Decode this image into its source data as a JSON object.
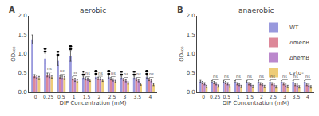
{
  "chart_data": [
    {
      "type": "bar",
      "title": "aerobic",
      "panel_label": "A",
      "x_label": "DIP Concentration (mM)",
      "y_label": "OD₆₀₀",
      "categories": [
        "0",
        "0.25",
        "0.5",
        "1",
        "1.5",
        "2",
        "2.5",
        "3",
        "3.5",
        "4"
      ],
      "series": [
        {
          "name": "WT",
          "color": "#9999dd",
          "values": [
            1.38,
            0.88,
            0.82,
            0.95,
            0.38,
            0.4,
            0.4,
            0.38,
            0.38,
            0.4
          ],
          "errors": [
            0.12,
            0.14,
            0.12,
            0.14,
            0.04,
            0.04,
            0.04,
            0.04,
            0.04,
            0.04
          ]
        },
        {
          "name": "ΔmenB",
          "color": "#dd8899",
          "values": [
            0.42,
            0.45,
            0.4,
            0.36,
            0.35,
            0.36,
            0.35,
            0.33,
            0.33,
            0.33
          ],
          "errors": [
            0.04,
            0.05,
            0.04,
            0.04,
            0.03,
            0.03,
            0.03,
            0.03,
            0.03,
            0.03
          ]
        },
        {
          "name": "ΔhemB",
          "color": "#bb88cc",
          "values": [
            0.4,
            0.43,
            0.38,
            0.32,
            0.34,
            0.35,
            0.32,
            0.3,
            0.3,
            0.3
          ],
          "errors": [
            0.04,
            0.05,
            0.04,
            0.04,
            0.03,
            0.03,
            0.03,
            0.03,
            0.03,
            0.03
          ]
        },
        {
          "name": "cyto-",
          "color": "#eecc77",
          "values": [
            0.37,
            0.4,
            0.37,
            0.29,
            0.31,
            0.31,
            0.28,
            0.24,
            0.21,
            0.2
          ],
          "errors": [
            0.04,
            0.04,
            0.04,
            0.04,
            0.03,
            0.03,
            0.03,
            0.03,
            0.03,
            0.03
          ]
        }
      ],
      "significance_dots": {
        "series": "WT",
        "counts": [
          0,
          4,
          4,
          4,
          3,
          4,
          4,
          4,
          4,
          4
        ]
      },
      "annotations": [
        {
          "category": "0.25",
          "text": "ns",
          "series": [
            "ΔmenB",
            "ΔhemB",
            "cyto-"
          ]
        },
        {
          "category": "0.5",
          "text": "ns",
          "series": [
            "ΔmenB",
            "ΔhemB",
            "cyto-"
          ]
        },
        {
          "category": "1",
          "text": "ns",
          "series": [
            "ΔmenB",
            "ΔhemB",
            "cyto-"
          ]
        },
        {
          "category": "1.5",
          "text": "ns",
          "series": [
            "ΔmenB",
            "ΔhemB",
            "cyto-"
          ]
        },
        {
          "category": "2",
          "text": "ns",
          "series": [
            "ΔmenB",
            "ΔhemB",
            "cyto-"
          ]
        },
        {
          "category": "2.5",
          "text": "ns",
          "series": [
            "ΔmenB",
            "ΔhemB",
            "cyto-"
          ]
        },
        {
          "category": "3",
          "text": "ns",
          "series": [
            "ΔmenB",
            "ΔhemB",
            "cyto-"
          ]
        },
        {
          "category": "3.5",
          "text": "ns",
          "series": [
            "ΔmenB",
            "ΔhemB",
            "cyto-"
          ]
        },
        {
          "category": "4",
          "text": "ns",
          "series": [
            "ΔmenB",
            "ΔhemB",
            "cyto-"
          ]
        }
      ],
      "ylim": [
        0,
        2.0
      ],
      "yticks": [
        {
          "value": 0.0,
          "label": "0.0"
        },
        {
          "value": 0.5,
          "label": "0.5"
        },
        {
          "value": 1.0,
          "label": "1.0"
        },
        {
          "value": 1.5,
          "label": "1.5"
        },
        {
          "value": 2.0,
          "label": "2.0"
        }
      ],
      "grid": false
    },
    {
      "type": "bar",
      "title": "anaerobic",
      "panel_label": "B",
      "x_label": "DIP Concentration (mM)",
      "y_label": "OD₆₀₀",
      "categories": [
        "0",
        "0.25",
        "0.5",
        "1",
        "1.5",
        "2",
        "2.5",
        "3",
        "3.5",
        "4"
      ],
      "series": [
        {
          "name": "WT",
          "color": "#9999dd",
          "values": [
            0.28,
            0.27,
            0.27,
            0.27,
            0.27,
            0.27,
            0.27,
            0.27,
            0.27,
            0.27
          ],
          "errors": [
            0.03,
            0.03,
            0.03,
            0.03,
            0.03,
            0.03,
            0.03,
            0.03,
            0.03,
            0.03
          ]
        },
        {
          "name": "ΔmenB",
          "color": "#dd8899",
          "values": [
            0.25,
            0.25,
            0.25,
            0.22,
            0.22,
            0.22,
            0.22,
            0.22,
            0.2,
            0.2
          ],
          "errors": [
            0.03,
            0.03,
            0.03,
            0.03,
            0.03,
            0.03,
            0.03,
            0.03,
            0.03,
            0.03
          ]
        },
        {
          "name": "ΔhemB",
          "color": "#bb88cc",
          "values": [
            0.22,
            0.22,
            0.22,
            0.2,
            0.2,
            0.2,
            0.2,
            0.18,
            0.18,
            0.18
          ],
          "errors": [
            0.03,
            0.03,
            0.03,
            0.03,
            0.03,
            0.03,
            0.03,
            0.03,
            0.03,
            0.03
          ]
        },
        {
          "name": "cyto-",
          "color": "#eecc77",
          "values": [
            0.15,
            0.16,
            0.16,
            0.15,
            0.15,
            0.15,
            0.14,
            0.15,
            0.14,
            0.14
          ],
          "errors": [
            0.03,
            0.03,
            0.03,
            0.03,
            0.03,
            0.03,
            0.03,
            0.03,
            0.03,
            0.03
          ]
        }
      ],
      "annotations": [
        {
          "category": "0.25",
          "text": "ns",
          "series": [
            "WT",
            "ΔmenB",
            "ΔhemB",
            "cyto-"
          ]
        },
        {
          "category": "0.5",
          "text": "ns",
          "series": [
            "WT",
            "ΔmenB",
            "ΔhemB",
            "cyto-"
          ]
        },
        {
          "category": "1",
          "text": "ns",
          "series": [
            "WT",
            "ΔmenB",
            "ΔhemB",
            "cyto-"
          ]
        },
        {
          "category": "1.5",
          "text": "ns",
          "series": [
            "WT",
            "ΔmenB",
            "ΔhemB",
            "cyto-"
          ]
        },
        {
          "category": "2",
          "text": "ns",
          "series": [
            "WT",
            "ΔmenB",
            "ΔhemB",
            "cyto-"
          ]
        },
        {
          "category": "2.5",
          "text": "ns",
          "series": [
            "WT",
            "ΔmenB",
            "ΔhemB",
            "cyto-"
          ]
        },
        {
          "category": "3",
          "text": "ns",
          "series": [
            "WT",
            "ΔmenB",
            "ΔhemB",
            "cyto-"
          ]
        },
        {
          "category": "3.5",
          "text": "ns",
          "series": [
            "WT",
            "ΔmenB",
            "ΔhemB",
            "cyto-"
          ]
        },
        {
          "category": "4",
          "text": "ns",
          "series": [
            "WT",
            "ΔmenB",
            "ΔhemB",
            "cyto-"
          ]
        }
      ],
      "ylim": [
        0,
        2.0
      ],
      "yticks": [
        {
          "value": 0.0,
          "label": "0.0"
        },
        {
          "value": 0.5,
          "label": "0.5"
        },
        {
          "value": 1.0,
          "label": "1.0"
        },
        {
          "value": 1.5,
          "label": "1.5"
        },
        {
          "value": 2.0,
          "label": "2.0"
        }
      ],
      "grid": false,
      "legend": "upper right"
    }
  ]
}
